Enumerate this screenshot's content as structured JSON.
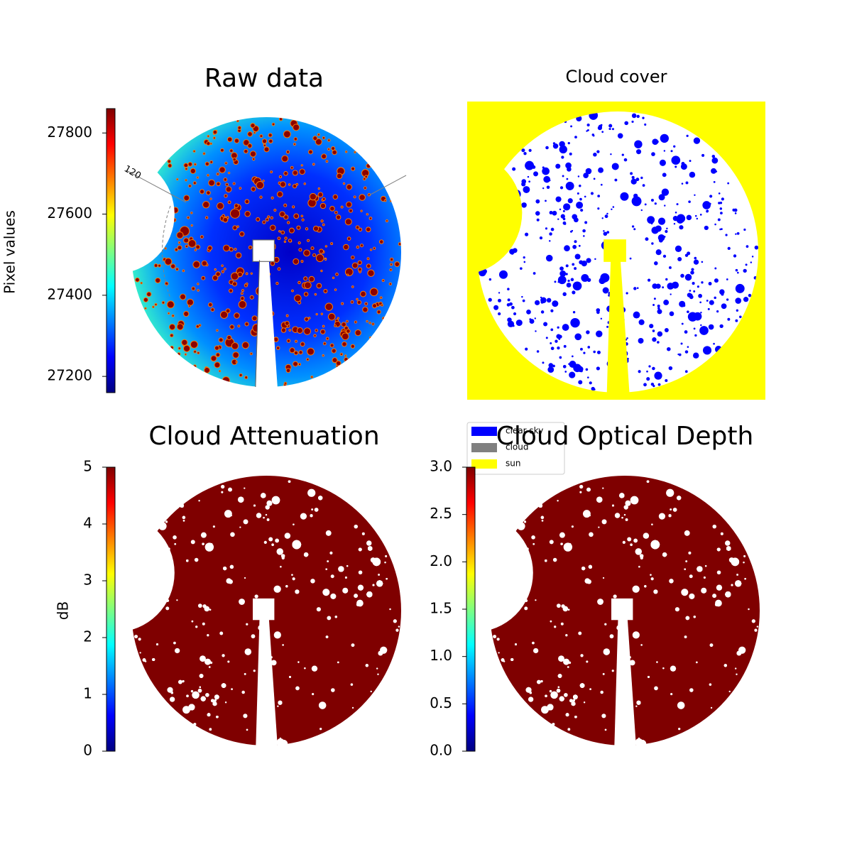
{
  "chart_data": [
    {
      "type": "image",
      "title": "Raw data",
      "colorbar_label": "Pixel values",
      "colormap": "jet",
      "clim": [
        27160,
        27860
      ],
      "cticks": [
        27200,
        27400,
        27600,
        27800
      ],
      "annotations": [
        "120"
      ]
    },
    {
      "type": "image",
      "title": "Cloud cover",
      "legend": [
        {
          "name": "clear sky",
          "color": "#0000ff"
        },
        {
          "name": "cloud",
          "color": "#808080"
        },
        {
          "name": "sun",
          "color": "#ffff00"
        }
      ]
    },
    {
      "type": "image",
      "title": "Cloud Attenuation",
      "colorbar_label": "dB",
      "colormap": "jet",
      "clim": [
        0,
        5
      ],
      "cticks": [
        0,
        1,
        2,
        3,
        4,
        5
      ]
    },
    {
      "type": "image",
      "title": "Cloud Optical Depth",
      "colormap": "jet",
      "clim": [
        0,
        3
      ],
      "cticks": [
        {
          "value": 0,
          "label": "0.0"
        },
        0.5,
        {
          "value": 1,
          "label": "1.0"
        },
        1.5,
        {
          "value": 2,
          "label": "2.0"
        },
        2.5,
        {
          "value": 3,
          "label": "3.0"
        }
      ]
    }
  ]
}
